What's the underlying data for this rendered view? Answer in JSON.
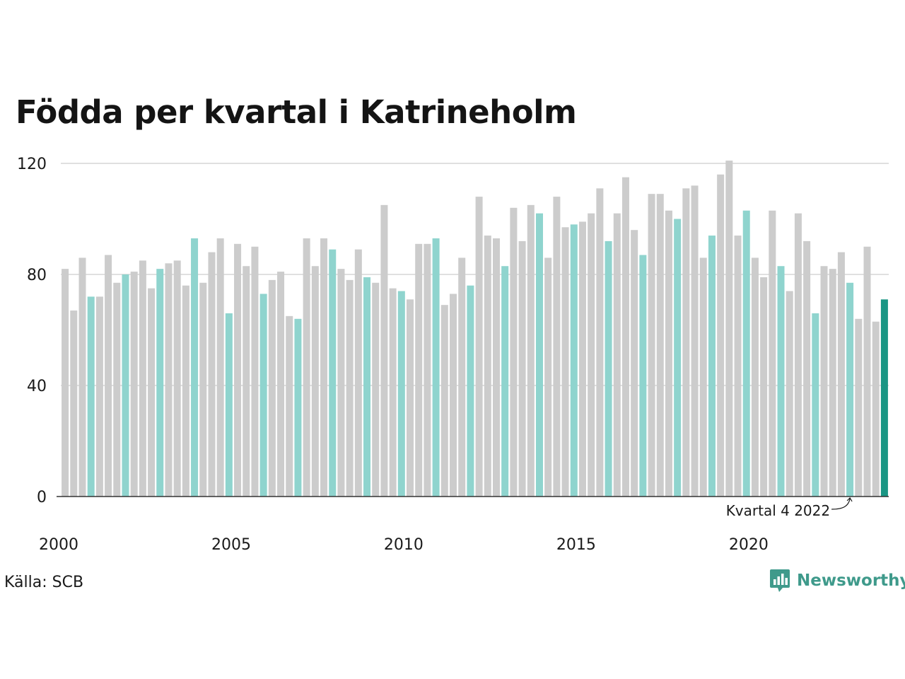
{
  "title": "Födda per kvartal i Katrineholm",
  "source": "Källa: SCB",
  "brand": {
    "name": "Newsworthy",
    "icon": "newsworthy-logo-icon"
  },
  "annotation": {
    "text": "Kvartal 4 2022",
    "target_index": 91
  },
  "colors": {
    "bar_default": "#cccccc",
    "bar_highlight_quarter": "#8fd4ce",
    "bar_latest": "#1a9684",
    "grid": "#e0e0e0",
    "axis": "#333333",
    "brand": "#3f9a8b"
  },
  "chart_data": {
    "type": "bar",
    "title": "Födda per kvartal i Katrineholm",
    "xlabel": "",
    "ylabel": "",
    "ylim": [
      0,
      120
    ],
    "yticks": [
      0,
      40,
      80,
      120
    ],
    "xtick_labels": [
      "2000",
      "2005",
      "2010",
      "2015",
      "2020"
    ],
    "grid": true,
    "first_period": "2000 Q1",
    "last_period": "2023 Q4",
    "categories": [
      "2000 Q1",
      "2000 Q2",
      "2000 Q3",
      "2000 Q4",
      "2001 Q1",
      "2001 Q2",
      "2001 Q3",
      "2001 Q4",
      "2002 Q1",
      "2002 Q2",
      "2002 Q3",
      "2002 Q4",
      "2003 Q1",
      "2003 Q2",
      "2003 Q3",
      "2003 Q4",
      "2004 Q1",
      "2004 Q2",
      "2004 Q3",
      "2004 Q4",
      "2005 Q1",
      "2005 Q2",
      "2005 Q3",
      "2005 Q4",
      "2006 Q1",
      "2006 Q2",
      "2006 Q3",
      "2006 Q4",
      "2007 Q1",
      "2007 Q2",
      "2007 Q3",
      "2007 Q4",
      "2008 Q1",
      "2008 Q2",
      "2008 Q3",
      "2008 Q4",
      "2009 Q1",
      "2009 Q2",
      "2009 Q3",
      "2009 Q4",
      "2010 Q1",
      "2010 Q2",
      "2010 Q3",
      "2010 Q4",
      "2011 Q1",
      "2011 Q2",
      "2011 Q3",
      "2011 Q4",
      "2012 Q1",
      "2012 Q2",
      "2012 Q3",
      "2012 Q4",
      "2013 Q1",
      "2013 Q2",
      "2013 Q3",
      "2013 Q4",
      "2014 Q1",
      "2014 Q2",
      "2014 Q3",
      "2014 Q4",
      "2015 Q1",
      "2015 Q2",
      "2015 Q3",
      "2015 Q4",
      "2016 Q1",
      "2016 Q2",
      "2016 Q3",
      "2016 Q4",
      "2017 Q1",
      "2017 Q2",
      "2017 Q3",
      "2017 Q4",
      "2018 Q1",
      "2018 Q2",
      "2018 Q3",
      "2018 Q4",
      "2019 Q1",
      "2019 Q2",
      "2019 Q3",
      "2019 Q4",
      "2020 Q1",
      "2020 Q2",
      "2020 Q3",
      "2020 Q4",
      "2021 Q1",
      "2021 Q2",
      "2021 Q3",
      "2021 Q4",
      "2022 Q1",
      "2022 Q2",
      "2022 Q3",
      "2022 Q4",
      "2023 Q1",
      "2023 Q2",
      "2023 Q3",
      "2023 Q4"
    ],
    "values": [
      82,
      67,
      86,
      72,
      72,
      87,
      77,
      80,
      81,
      85,
      75,
      82,
      84,
      85,
      76,
      93,
      77,
      88,
      93,
      66,
      91,
      83,
      90,
      73,
      78,
      81,
      65,
      64,
      93,
      83,
      93,
      89,
      82,
      78,
      89,
      79,
      77,
      105,
      75,
      74,
      71,
      91,
      91,
      93,
      69,
      73,
      86,
      76,
      108,
      94,
      93,
      83,
      104,
      92,
      105,
      102,
      86,
      108,
      97,
      98,
      99,
      102,
      111,
      92,
      102,
      115,
      96,
      87,
      109,
      109,
      103,
      100,
      111,
      112,
      86,
      94,
      116,
      121,
      94,
      103,
      86,
      79,
      103,
      83,
      74,
      102,
      92,
      66,
      83,
      82,
      88,
      77,
      64,
      90,
      63,
      71
    ]
  }
}
